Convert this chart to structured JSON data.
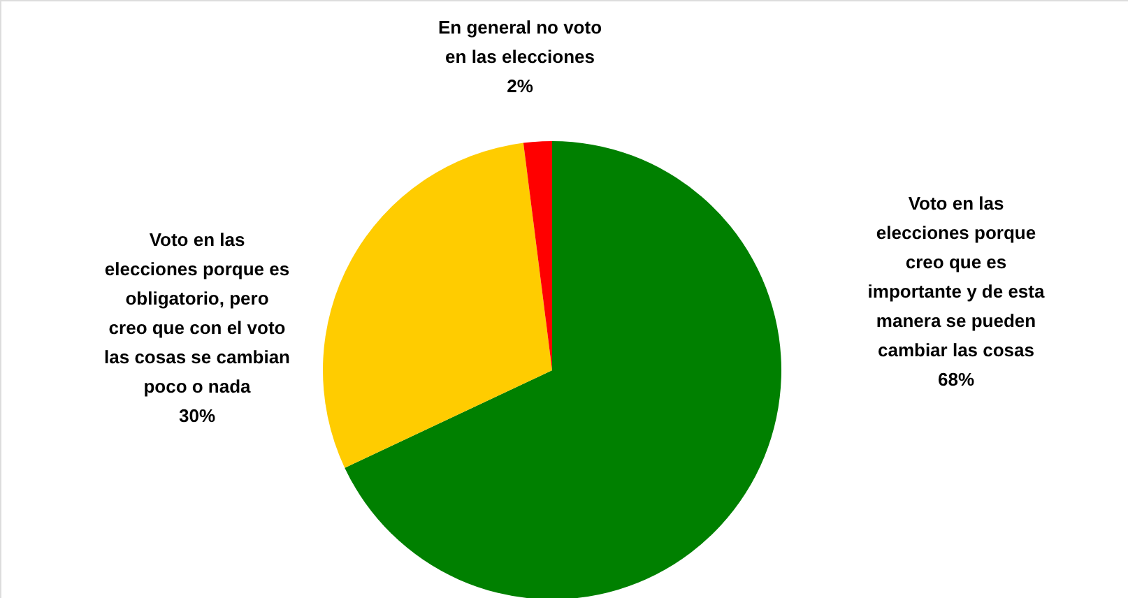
{
  "chart_data": {
    "type": "pie",
    "categories": [
      "Voto en las\nelecciones porque\ncreo que es\nimportante y de esta\nmanera se pueden\ncambiar las cosas",
      "Voto en las\nelecciones porque es\nobligatorio, pero\ncreo que con el voto\nlas cosas se cambian\npoco o nada",
      "En general no voto\nen las elecciones"
    ],
    "values": [
      68,
      30,
      2
    ],
    "colors": [
      "#008000",
      "#ffcc00",
      "#ff0000"
    ],
    "value_labels": [
      "68%",
      "30%",
      "2%"
    ]
  }
}
